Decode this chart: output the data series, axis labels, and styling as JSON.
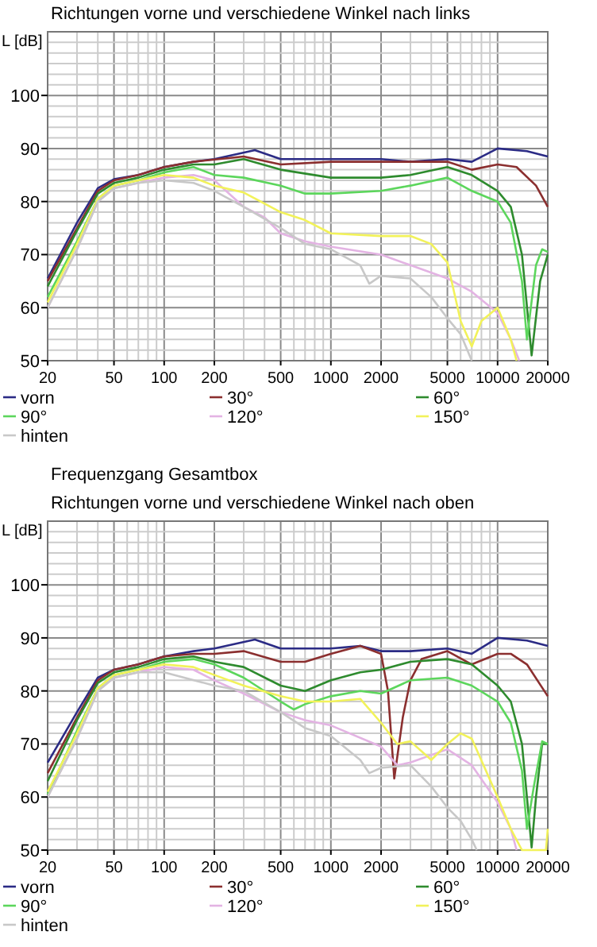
{
  "chart_data": [
    {
      "type": "line",
      "title": "Richtungen vorne und verschiedene Winkel nach links",
      "ylabel": "L [dB]",
      "log": "x",
      "grid": true,
      "legend": "bottom",
      "xlim": [
        20,
        20000
      ],
      "ylim": [
        50,
        112
      ],
      "xticks": [
        20,
        {
          "value": 30,
          "label": null
        },
        {
          "value": 40,
          "label": null
        },
        50,
        {
          "value": 60,
          "label": null
        },
        {
          "value": 70,
          "label": null
        },
        {
          "value": 80,
          "label": null
        },
        {
          "value": 90,
          "label": null
        },
        100,
        200,
        {
          "value": 300,
          "label": null
        },
        {
          "value": 400,
          "label": null
        },
        500,
        {
          "value": 600,
          "label": null
        },
        {
          "value": 700,
          "label": null
        },
        {
          "value": 800,
          "label": null
        },
        {
          "value": 900,
          "label": null
        },
        1000,
        2000,
        {
          "value": 3000,
          "label": null
        },
        {
          "value": 4000,
          "label": null
        },
        5000,
        {
          "value": 6000,
          "label": null
        },
        {
          "value": 7000,
          "label": null
        },
        {
          "value": 8000,
          "label": null
        },
        {
          "value": 9000,
          "label": null
        },
        10000,
        20000
      ],
      "yticks": [
        50,
        {
          "value": 52,
          "label": null
        },
        {
          "value": 54,
          "label": null
        },
        {
          "value": 56,
          "label": null
        },
        {
          "value": 58,
          "label": null
        },
        60,
        {
          "value": 62,
          "label": null
        },
        {
          "value": 64,
          "label": null
        },
        {
          "value": 66,
          "label": null
        },
        {
          "value": 68,
          "label": null
        },
        70,
        {
          "value": 72,
          "label": null
        },
        {
          "value": 74,
          "label": null
        },
        {
          "value": 76,
          "label": null
        },
        {
          "value": 78,
          "label": null
        },
        80,
        {
          "value": 82,
          "label": null
        },
        {
          "value": 84,
          "label": null
        },
        {
          "value": 86,
          "label": null
        },
        {
          "value": 88,
          "label": null
        },
        90,
        {
          "value": 92,
          "label": null
        },
        {
          "value": 94,
          "label": null
        },
        {
          "value": 96,
          "label": null
        },
        {
          "value": 98,
          "label": null
        },
        100,
        {
          "value": 102,
          "label": null
        },
        {
          "value": 104,
          "label": null
        },
        {
          "value": 106,
          "label": null
        },
        {
          "value": 108,
          "label": null
        },
        {
          "value": 110,
          "label": null
        },
        {
          "value": 112,
          "label": null
        }
      ],
      "series": [
        {
          "name": "vorn",
          "color": "#2b2b85",
          "x": [
            20,
            30,
            40,
            50,
            70,
            100,
            150,
            200,
            350,
            500,
            1000,
            2000,
            3000,
            5000,
            7000,
            10000,
            15000,
            20000
          ],
          "values": [
            65.5,
            76,
            82.5,
            84.2,
            85,
            86.5,
            87.5,
            88,
            89.7,
            88,
            88,
            88,
            87.5,
            88,
            87.5,
            90,
            89.5,
            88.5
          ]
        },
        {
          "name": "30°",
          "color": "#8b2f2f",
          "x": [
            20,
            30,
            40,
            50,
            70,
            100,
            150,
            300,
            500,
            1000,
            2000,
            3000,
            5000,
            7000,
            10000,
            13000,
            17000,
            20000
          ],
          "values": [
            65,
            75,
            82,
            84,
            85,
            86.5,
            87.5,
            88.5,
            87,
            87.5,
            87.5,
            87.5,
            87.5,
            86,
            87,
            86.5,
            83,
            79
          ]
        },
        {
          "name": "60°",
          "color": "#2e8b2e",
          "x": [
            20,
            30,
            40,
            50,
            70,
            100,
            150,
            200,
            300,
            500,
            1000,
            2000,
            3000,
            5000,
            7000,
            10000,
            12000,
            14000,
            16000,
            18000,
            20000
          ],
          "values": [
            64,
            74.5,
            81.5,
            83.5,
            84.5,
            86,
            87,
            87,
            88,
            86,
            84.5,
            84.5,
            85,
            86.5,
            85,
            82,
            79,
            70,
            51,
            65,
            70
          ]
        },
        {
          "name": "90°",
          "color": "#5cd65c",
          "x": [
            20,
            30,
            40,
            50,
            70,
            100,
            150,
            200,
            300,
            500,
            700,
            1000,
            2000,
            3000,
            5000,
            7000,
            10000,
            12000,
            14000,
            15000,
            17000,
            18500,
            20000
          ],
          "values": [
            62,
            72.5,
            80.5,
            83,
            84,
            85.5,
            86.5,
            85,
            84.5,
            83,
            81.5,
            81.5,
            82,
            83,
            84.5,
            82,
            80,
            76,
            65,
            54,
            68,
            71,
            70.5
          ]
        },
        {
          "name": "120°",
          "color": "#e3b3e3",
          "x": [
            20,
            30,
            40,
            50,
            70,
            100,
            150,
            200,
            300,
            400,
            500,
            700,
            1000,
            2000,
            3000,
            5000,
            7000,
            10000,
            12000,
            13500
          ],
          "values": [
            60,
            71,
            80,
            82.5,
            83.5,
            84.5,
            85,
            84,
            79,
            77,
            74,
            72.5,
            71.5,
            70,
            68,
            65.5,
            63,
            59,
            54,
            50
          ]
        },
        {
          "name": "150°",
          "color": "#f2f25a",
          "x": [
            20,
            30,
            40,
            50,
            70,
            100,
            150,
            200,
            300,
            500,
            700,
            1000,
            2000,
            3000,
            4000,
            5000,
            6000,
            7000,
            8000,
            10000,
            12000,
            13000
          ],
          "values": [
            61,
            72,
            80.5,
            83,
            84,
            85,
            84.5,
            83,
            81.7,
            78,
            76.5,
            74,
            73.5,
            73.5,
            72,
            68.5,
            57.5,
            52.7,
            57.5,
            60,
            54,
            50
          ]
        },
        {
          "name": "hinten",
          "color": "#c8c8c8",
          "x": [
            20,
            30,
            40,
            50,
            70,
            100,
            150,
            200,
            300,
            500,
            700,
            1000,
            1500,
            1700,
            2000,
            3000,
            4000,
            5000,
            6000,
            7000
          ],
          "values": [
            60,
            71,
            80,
            82.5,
            83.5,
            84,
            83.5,
            82,
            79,
            75,
            72,
            71,
            68,
            64.5,
            66,
            65.5,
            62,
            58,
            55,
            50
          ]
        }
      ]
    },
    {
      "type": "line",
      "title": "Frequenzgang Gesamtbox",
      "subtitle": "Richtungen vorne und verschiedene Winkel nach oben",
      "ylabel": "L [dB]",
      "log": "x",
      "grid": true,
      "legend": "bottom",
      "xlim": [
        20,
        20000
      ],
      "ylim": [
        50,
        112
      ],
      "xticks": [
        20,
        {
          "value": 30,
          "label": null
        },
        {
          "value": 40,
          "label": null
        },
        50,
        {
          "value": 60,
          "label": null
        },
        {
          "value": 70,
          "label": null
        },
        {
          "value": 80,
          "label": null
        },
        {
          "value": 90,
          "label": null
        },
        100,
        200,
        {
          "value": 300,
          "label": null
        },
        {
          "value": 400,
          "label": null
        },
        500,
        {
          "value": 600,
          "label": null
        },
        {
          "value": 700,
          "label": null
        },
        {
          "value": 800,
          "label": null
        },
        {
          "value": 900,
          "label": null
        },
        1000,
        2000,
        {
          "value": 3000,
          "label": null
        },
        {
          "value": 4000,
          "label": null
        },
        5000,
        {
          "value": 6000,
          "label": null
        },
        {
          "value": 7000,
          "label": null
        },
        {
          "value": 8000,
          "label": null
        },
        {
          "value": 9000,
          "label": null
        },
        10000,
        20000
      ],
      "yticks": [
        50,
        {
          "value": 52,
          "label": null
        },
        {
          "value": 54,
          "label": null
        },
        {
          "value": 56,
          "label": null
        },
        {
          "value": 58,
          "label": null
        },
        60,
        {
          "value": 62,
          "label": null
        },
        {
          "value": 64,
          "label": null
        },
        {
          "value": 66,
          "label": null
        },
        {
          "value": 68,
          "label": null
        },
        70,
        {
          "value": 72,
          "label": null
        },
        {
          "value": 74,
          "label": null
        },
        {
          "value": 76,
          "label": null
        },
        {
          "value": 78,
          "label": null
        },
        80,
        {
          "value": 82,
          "label": null
        },
        {
          "value": 84,
          "label": null
        },
        {
          "value": 86,
          "label": null
        },
        {
          "value": 88,
          "label": null
        },
        90,
        {
          "value": 92,
          "label": null
        },
        {
          "value": 94,
          "label": null
        },
        {
          "value": 96,
          "label": null
        },
        {
          "value": 98,
          "label": null
        },
        100,
        {
          "value": 102,
          "label": null
        },
        {
          "value": 104,
          "label": null
        },
        {
          "value": 106,
          "label": null
        },
        {
          "value": 108,
          "label": null
        },
        {
          "value": 110,
          "label": null
        },
        {
          "value": 112,
          "label": null
        }
      ],
      "series": [
        {
          "name": "vorn",
          "color": "#2b2b85",
          "x": [
            20,
            30,
            40,
            50,
            70,
            100,
            150,
            200,
            350,
            500,
            1000,
            1500,
            2000,
            3000,
            5000,
            7000,
            10000,
            15000,
            20000
          ],
          "values": [
            66.5,
            76,
            82.5,
            84,
            85,
            86.5,
            87.5,
            88,
            89.7,
            88,
            88,
            88.5,
            87.5,
            87.5,
            88,
            87,
            90,
            89.5,
            88.5
          ]
        },
        {
          "name": "30°",
          "color": "#8b2f2f",
          "x": [
            20,
            30,
            40,
            50,
            70,
            100,
            150,
            200,
            300,
            500,
            700,
            1000,
            1500,
            2000,
            2200,
            2400,
            2700,
            3000,
            3500,
            5000,
            7000,
            10000,
            12000,
            15000,
            20000
          ],
          "values": [
            64.5,
            75,
            82,
            84,
            85,
            86.5,
            87,
            87,
            87.5,
            85.5,
            85.5,
            87,
            88.5,
            87,
            80,
            63.5,
            75,
            82,
            86,
            87.5,
            85,
            87,
            87,
            85,
            79
          ]
        },
        {
          "name": "60°",
          "color": "#2e8b2e",
          "x": [
            20,
            30,
            40,
            50,
            70,
            100,
            150,
            200,
            300,
            500,
            700,
            1000,
            1500,
            2000,
            3000,
            5000,
            7000,
            10000,
            12000,
            14000,
            16000,
            17000,
            18500,
            20000
          ],
          "values": [
            63,
            74.5,
            81.5,
            83.5,
            84.5,
            86,
            86.5,
            85.5,
            84.5,
            81,
            80,
            82,
            83.5,
            84,
            85.5,
            86,
            85,
            81,
            78,
            70,
            50.5,
            60,
            70,
            70
          ]
        },
        {
          "name": "90°",
          "color": "#5cd65c",
          "x": [
            20,
            30,
            40,
            50,
            70,
            100,
            150,
            200,
            300,
            500,
            600,
            700,
            1000,
            1500,
            2000,
            3000,
            5000,
            7000,
            10000,
            12000,
            14000,
            15000,
            16500,
            18500,
            20000
          ],
          "values": [
            60.5,
            72.5,
            80.5,
            83,
            84,
            85.5,
            86,
            85,
            82.5,
            78,
            76.5,
            77.5,
            79,
            80,
            79.5,
            82,
            82.5,
            81,
            78,
            74,
            65,
            54,
            62,
            70.5,
            70
          ]
        },
        {
          "name": "120°",
          "color": "#e3b3e3",
          "x": [
            20,
            30,
            40,
            50,
            70,
            100,
            150,
            200,
            300,
            500,
            700,
            1000,
            2000,
            2500,
            3000,
            5000,
            7000,
            10000,
            12000,
            13000
          ],
          "values": [
            60,
            71,
            80,
            82.5,
            83.5,
            84.5,
            84,
            82,
            79.5,
            76,
            74.5,
            73.5,
            69.5,
            66,
            66.5,
            69,
            66,
            59,
            54,
            50
          ]
        },
        {
          "name": "150°",
          "color": "#f2f25a",
          "x": [
            20,
            30,
            40,
            50,
            70,
            100,
            150,
            200,
            300,
            500,
            700,
            1000,
            1500,
            2000,
            2500,
            3000,
            4000,
            5000,
            6000,
            7000,
            10000,
            12000,
            14000,
            19500,
            20000
          ],
          "values": [
            61,
            72,
            80.5,
            83,
            84,
            85,
            84.5,
            83,
            81,
            79,
            78,
            78,
            78.5,
            74,
            70,
            70.5,
            67,
            70,
            72,
            71,
            60,
            54,
            50,
            50,
            54
          ]
        },
        {
          "name": "hinten",
          "color": "#c8c8c8",
          "x": [
            20,
            30,
            40,
            50,
            70,
            100,
            200,
            300,
            500,
            700,
            1000,
            1500,
            1700,
            2000,
            3000,
            4000,
            5000,
            6000,
            7000,
            7500
          ],
          "values": [
            60,
            71,
            80,
            82.5,
            83.5,
            83.5,
            81,
            80,
            76,
            73,
            71.5,
            67,
            64.5,
            65.5,
            66,
            62,
            58,
            55.5,
            52,
            50
          ]
        }
      ]
    }
  ]
}
